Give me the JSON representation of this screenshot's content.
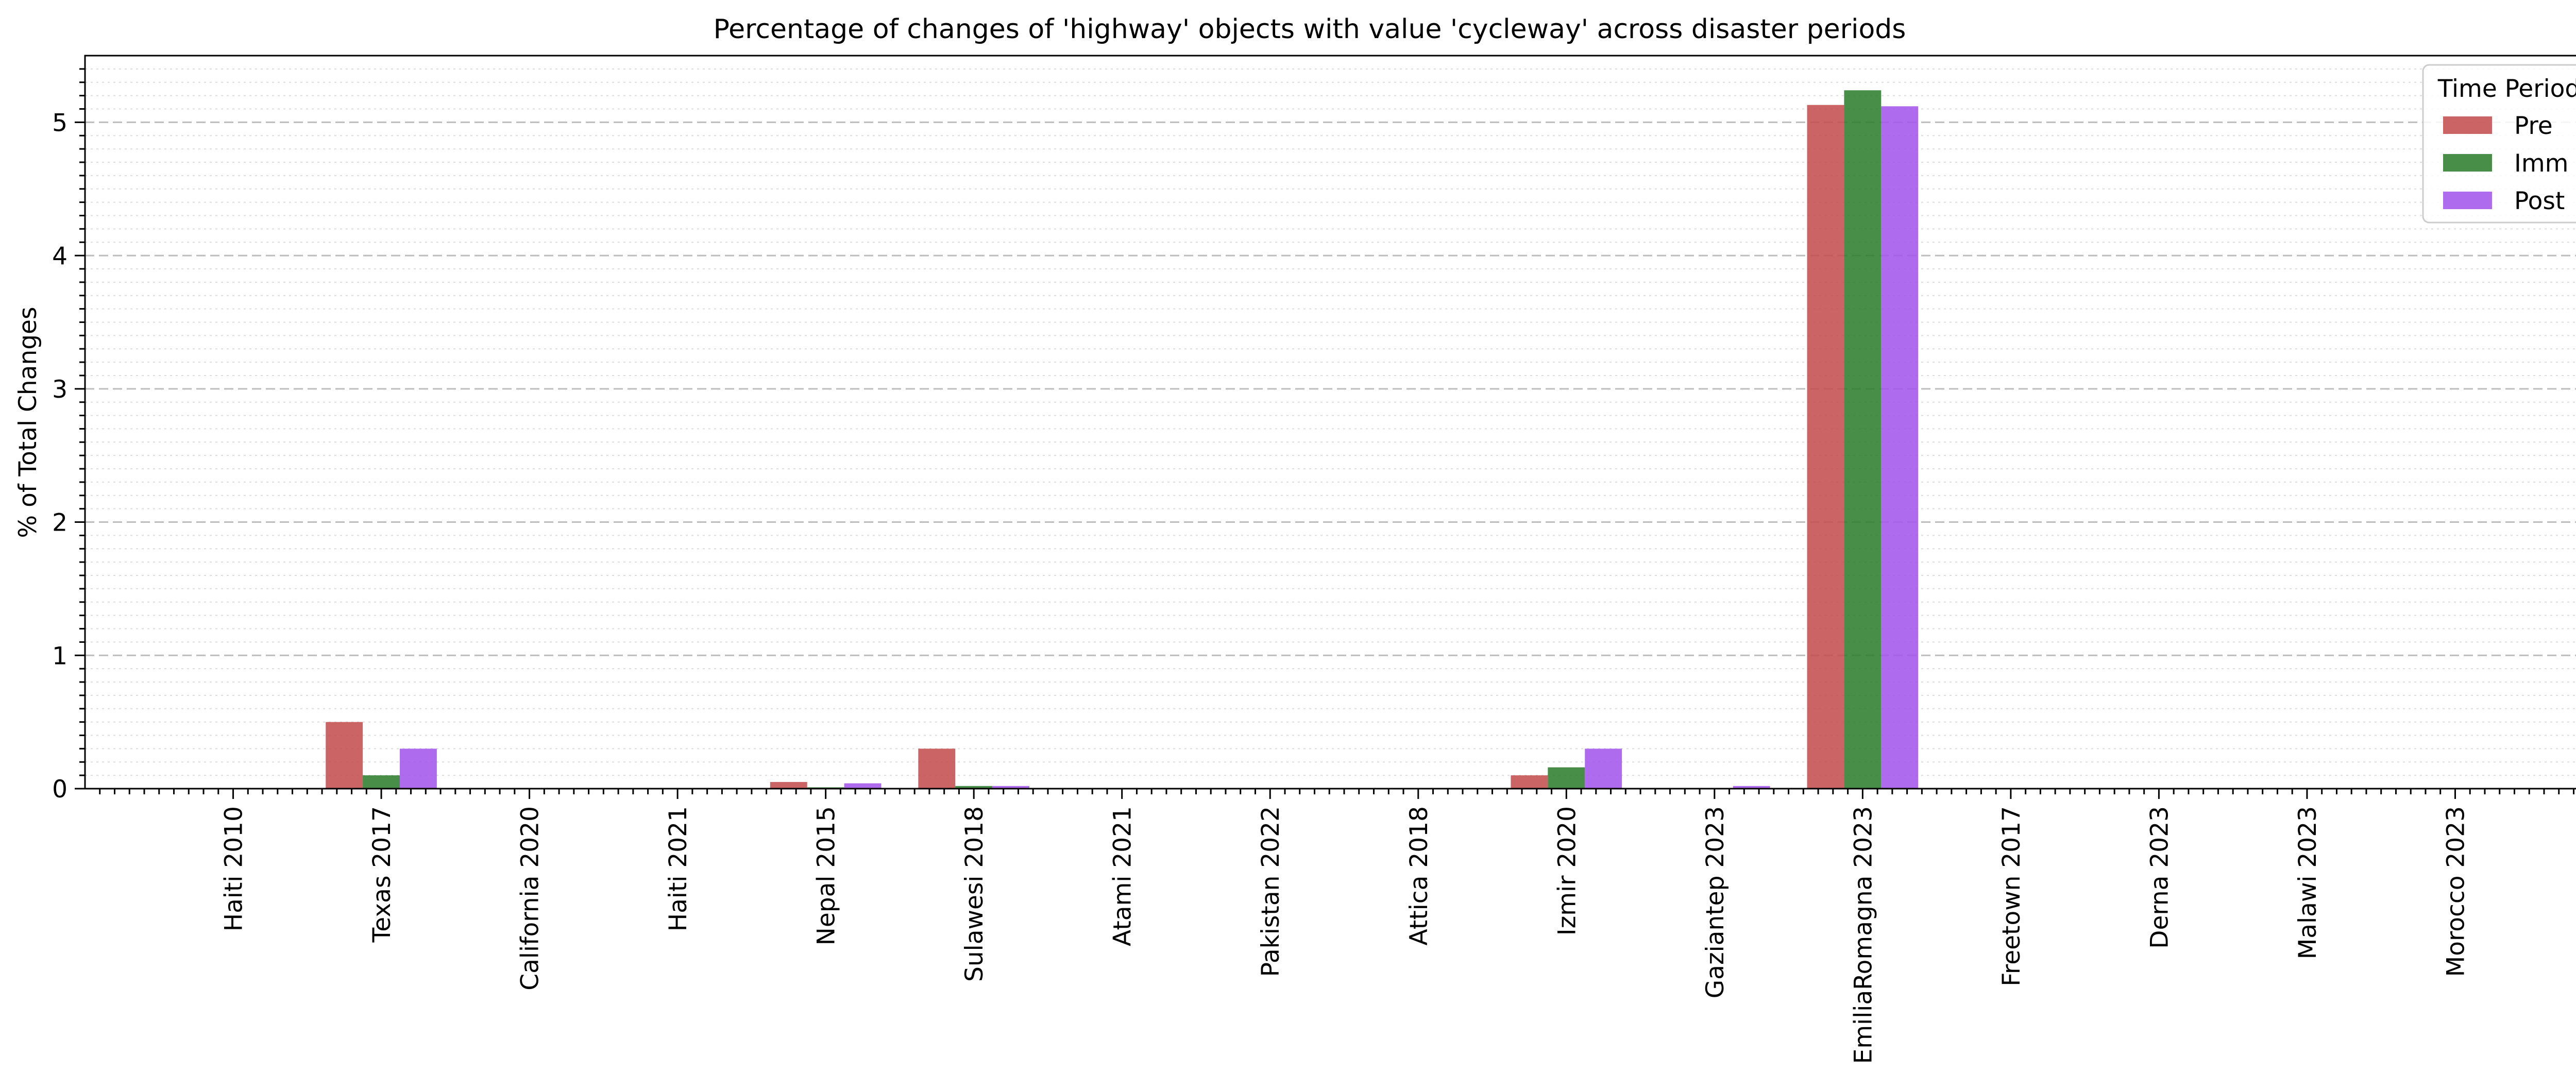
{
  "chart_data": {
    "type": "bar",
    "title": "Percentage of changes of 'highway' objects with value 'cycleway' across disaster periods",
    "xlabel": "",
    "ylabel": "% of Total Changes",
    "categories": [
      "Haiti 2010",
      "Texas 2017",
      "California 2020",
      "Haiti 2021",
      "Nepal 2015",
      "Sulawesi 2018",
      "Atami 2021",
      "Pakistan 2022",
      "Attica 2018",
      "Izmir 2020",
      "Gaziantep 2023",
      "EmiliaRomagna 2023",
      "Freetown 2017",
      "Derna 2023",
      "Malawi 2023",
      "Morocco 2023"
    ],
    "series": [
      {
        "name": "Pre",
        "color": "#c44e4e",
        "values": [
          0,
          0.5,
          0,
          0,
          0.05,
          0.3,
          0,
          0,
          0,
          0.1,
          0,
          5.13,
          0,
          0,
          0,
          0
        ]
      },
      {
        "name": "Imm",
        "color": "#2f7d2f",
        "values": [
          0,
          0.1,
          0,
          0,
          0.01,
          0.02,
          0,
          0,
          0,
          0.16,
          0,
          5.24,
          0,
          0,
          0,
          0
        ]
      },
      {
        "name": "Post",
        "color": "#a457ea",
        "values": [
          0,
          0.3,
          0,
          0,
          0.04,
          0.02,
          0,
          0,
          0,
          0.3,
          0.02,
          5.12,
          0,
          0,
          0,
          0
        ]
      }
    ],
    "ylim": [
      0,
      5.5
    ],
    "yticks": [
      0,
      1,
      2,
      3,
      4,
      5
    ],
    "grid": "y major dashed, minor dotted",
    "legend": {
      "title": "Time Period",
      "placement": "top-right"
    }
  }
}
